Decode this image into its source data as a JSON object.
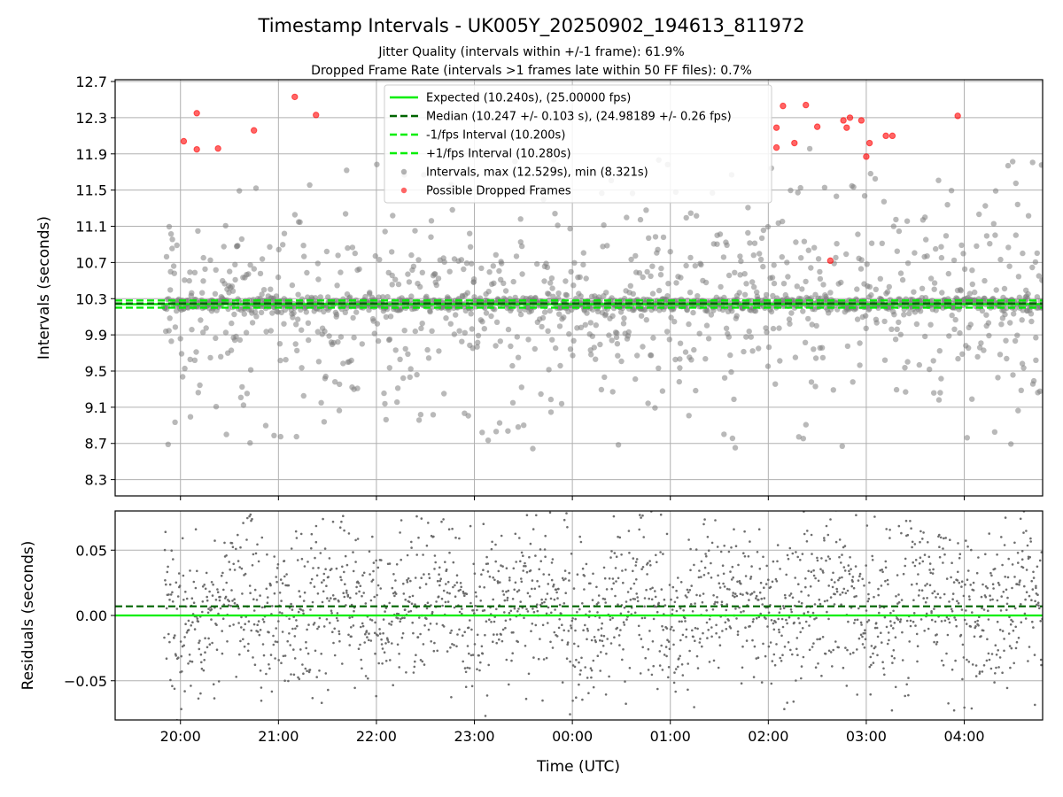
{
  "chart_data": {
    "title": "Timestamp Intervals - UK005Y_20250902_194613_811972",
    "subtitle_lines": [
      "Jitter Quality (intervals within +/-1 frame): 61.9%",
      "Dropped Frame Rate (intervals >1 frames late within 50 FF files): 0.7%"
    ],
    "xlabel": "Time (UTC)",
    "x_axis_type": "time",
    "x_range": [
      "2025-09-02T19:20:00",
      "2025-09-03T04:48:00"
    ],
    "x_tick_labels": [
      "20:00",
      "21:00",
      "22:00",
      "23:00",
      "00:00",
      "01:00",
      "02:00",
      "03:00",
      "04:00"
    ],
    "x_tick_times": [
      "2025-09-02T20:00:00",
      "2025-09-02T21:00:00",
      "2025-09-02T22:00:00",
      "2025-09-02T23:00:00",
      "2025-09-03T00:00:00",
      "2025-09-03T01:00:00",
      "2025-09-03T02:00:00",
      "2025-09-03T03:00:00",
      "2025-09-03T04:00:00"
    ],
    "grid": true,
    "top_panel": {
      "type": "scatter",
      "ylabel": "Intervals (seconds)",
      "ylim": [
        8.12,
        12.72
      ],
      "y_ticks": [
        8.3,
        8.7,
        9.1,
        9.5,
        9.9,
        10.3,
        10.7,
        11.1,
        11.5,
        11.9,
        12.3,
        12.7
      ],
      "y_tick_labels": [
        "8.3",
        "8.7",
        "9.1",
        "9.5",
        "9.9",
        "10.3",
        "10.7",
        "11.1",
        "11.5",
        "11.9",
        "12.3",
        "12.7"
      ],
      "legend_position": "top-center",
      "lines": [
        {
          "name": "Expected (10.240s), (25.00000 fps)",
          "value": 10.24,
          "color": "#00ee00",
          "style": "solid"
        },
        {
          "name": "Median (10.247 +/- 0.103 s), (24.98189 +/- 0.26 fps)",
          "value": 10.247,
          "color": "#006400",
          "style": "dashed"
        },
        {
          "name": "-1/fps Interval (10.200s)",
          "value": 10.2,
          "color": "#00ee00",
          "style": "dashed"
        },
        {
          "name": "+1/fps Interval (10.280s)",
          "value": 10.28,
          "color": "#00ee00",
          "style": "dashed"
        }
      ],
      "scatter_series": [
        {
          "name": "Intervals, max (12.529s), min (8.321s)",
          "color": "#808080",
          "count": 2020,
          "max": 12.529,
          "min": 8.321
        },
        {
          "name": "Possible Dropped Frames",
          "color": "#ff0000",
          "points": [
            {
              "x": "2025-09-02T20:02:00",
              "y": 12.04
            },
            {
              "x": "2025-09-02T20:10:00",
              "y": 12.35
            },
            {
              "x": "2025-09-02T20:10:00",
              "y": 11.95
            },
            {
              "x": "2025-09-02T20:23:00",
              "y": 11.96
            },
            {
              "x": "2025-09-02T20:45:00",
              "y": 12.16
            },
            {
              "x": "2025-09-02T21:10:00",
              "y": 12.53
            },
            {
              "x": "2025-09-02T21:23:00",
              "y": 12.33
            },
            {
              "x": "2025-09-03T02:05:00",
              "y": 12.19
            },
            {
              "x": "2025-09-03T02:05:00",
              "y": 11.97
            },
            {
              "x": "2025-09-03T02:09:00",
              "y": 12.43
            },
            {
              "x": "2025-09-03T02:16:00",
              "y": 12.02
            },
            {
              "x": "2025-09-03T02:23:00",
              "y": 12.44
            },
            {
              "x": "2025-09-03T02:30:00",
              "y": 12.2
            },
            {
              "x": "2025-09-03T02:38:00",
              "y": 10.72
            },
            {
              "x": "2025-09-03T02:46:00",
              "y": 12.27
            },
            {
              "x": "2025-09-03T02:48:00",
              "y": 12.19
            },
            {
              "x": "2025-09-03T02:50:00",
              "y": 12.3
            },
            {
              "x": "2025-09-03T02:57:00",
              "y": 12.27
            },
            {
              "x": "2025-09-03T03:00:00",
              "y": 11.87
            },
            {
              "x": "2025-09-03T03:02:00",
              "y": 12.02
            },
            {
              "x": "2025-09-03T03:12:00",
              "y": 12.1
            },
            {
              "x": "2025-09-03T03:16:00",
              "y": 12.1
            },
            {
              "x": "2025-09-03T03:56:00",
              "y": 12.32
            }
          ]
        }
      ]
    },
    "bottom_panel": {
      "type": "scatter",
      "ylabel": "Residuals (seconds)",
      "ylim": [
        -0.08,
        0.08
      ],
      "y_ticks": [
        -0.05,
        0,
        0.05
      ],
      "y_tick_labels": [
        "−0.05",
        "0.00",
        "0.05"
      ],
      "lines": [
        {
          "value": 0.0,
          "color": "#00ee00",
          "style": "solid"
        },
        {
          "value": 0.007,
          "color": "#006400",
          "style": "dashed"
        }
      ],
      "scatter_series": [
        {
          "color": "#666666",
          "count": 2020,
          "range": [
            -0.08,
            0.08
          ]
        }
      ]
    }
  }
}
